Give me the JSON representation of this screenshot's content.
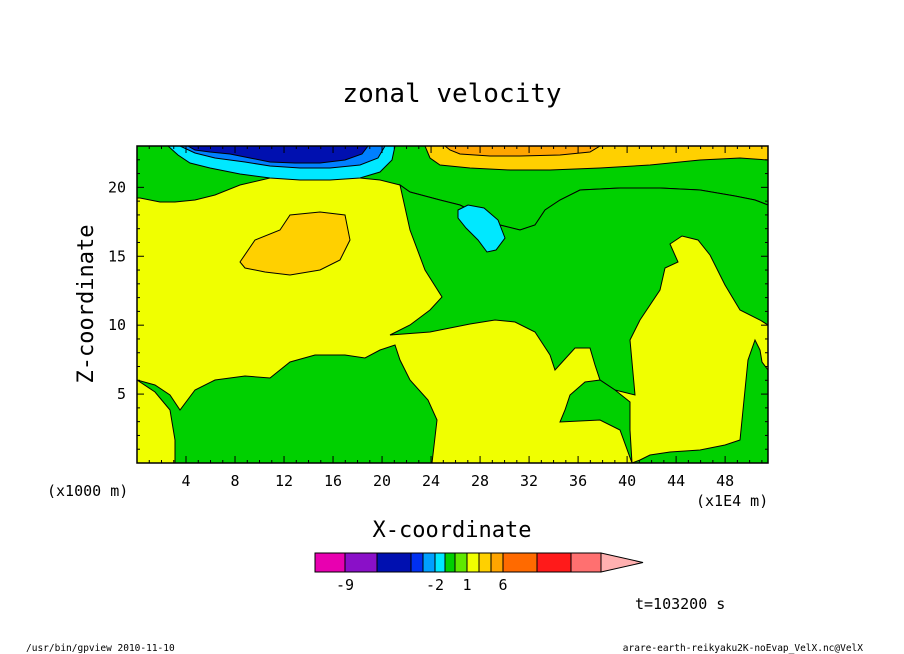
{
  "chart_data": {
    "type": "heatmap",
    "title": "zonal velocity",
    "xlabel": "X-coordinate",
    "ylabel": "Z-coordinate",
    "x_unit": "(x1E4 m)",
    "y_unit": "(x1000 m)",
    "xlim": [
      0,
      51.5
    ],
    "ylim": [
      0,
      23
    ],
    "x_ticks": [
      "4",
      "8",
      "12",
      "16",
      "20",
      "24",
      "28",
      "32",
      "36",
      "40",
      "44",
      "48"
    ],
    "y_ticks": [
      "5",
      "10",
      "15",
      "20"
    ],
    "colorbar": {
      "ticks": [
        {
          "label": "-9",
          "bin": 1
        },
        {
          "label": "-2",
          "bin": 5
        },
        {
          "label": "1",
          "bin": 8
        },
        {
          "label": "6",
          "bin": 11
        }
      ],
      "colors": [
        "#e800b0",
        "#8a10c8",
        "#0010b0",
        "#0030f0",
        "#00a0ff",
        "#00e8ff",
        "#00d000",
        "#60e800",
        "#f0ff00",
        "#ffd000",
        "#ffa500",
        "#ff6a00",
        "#ff1a1a",
        "#ff7070",
        "#ffb0b0"
      ]
    },
    "regions": [
      {
        "level": "yellow",
        "color": "#f0ff00"
      },
      {
        "level": "green",
        "color": "#00d000"
      },
      {
        "level": "light-orange",
        "color": "#ffd000"
      },
      {
        "level": "orange",
        "color": "#ffa500"
      },
      {
        "level": "cyan",
        "color": "#00e8ff"
      },
      {
        "level": "light-blue",
        "color": "#0080ff"
      },
      {
        "level": "blue",
        "color": "#0010b0"
      }
    ],
    "time_label": "t=103200 s"
  },
  "footer": {
    "left": "/usr/bin/gpview   2010-11-10",
    "right": "arare-earth-reikyaku2K-noEvap_VelX.nc@VelX"
  }
}
